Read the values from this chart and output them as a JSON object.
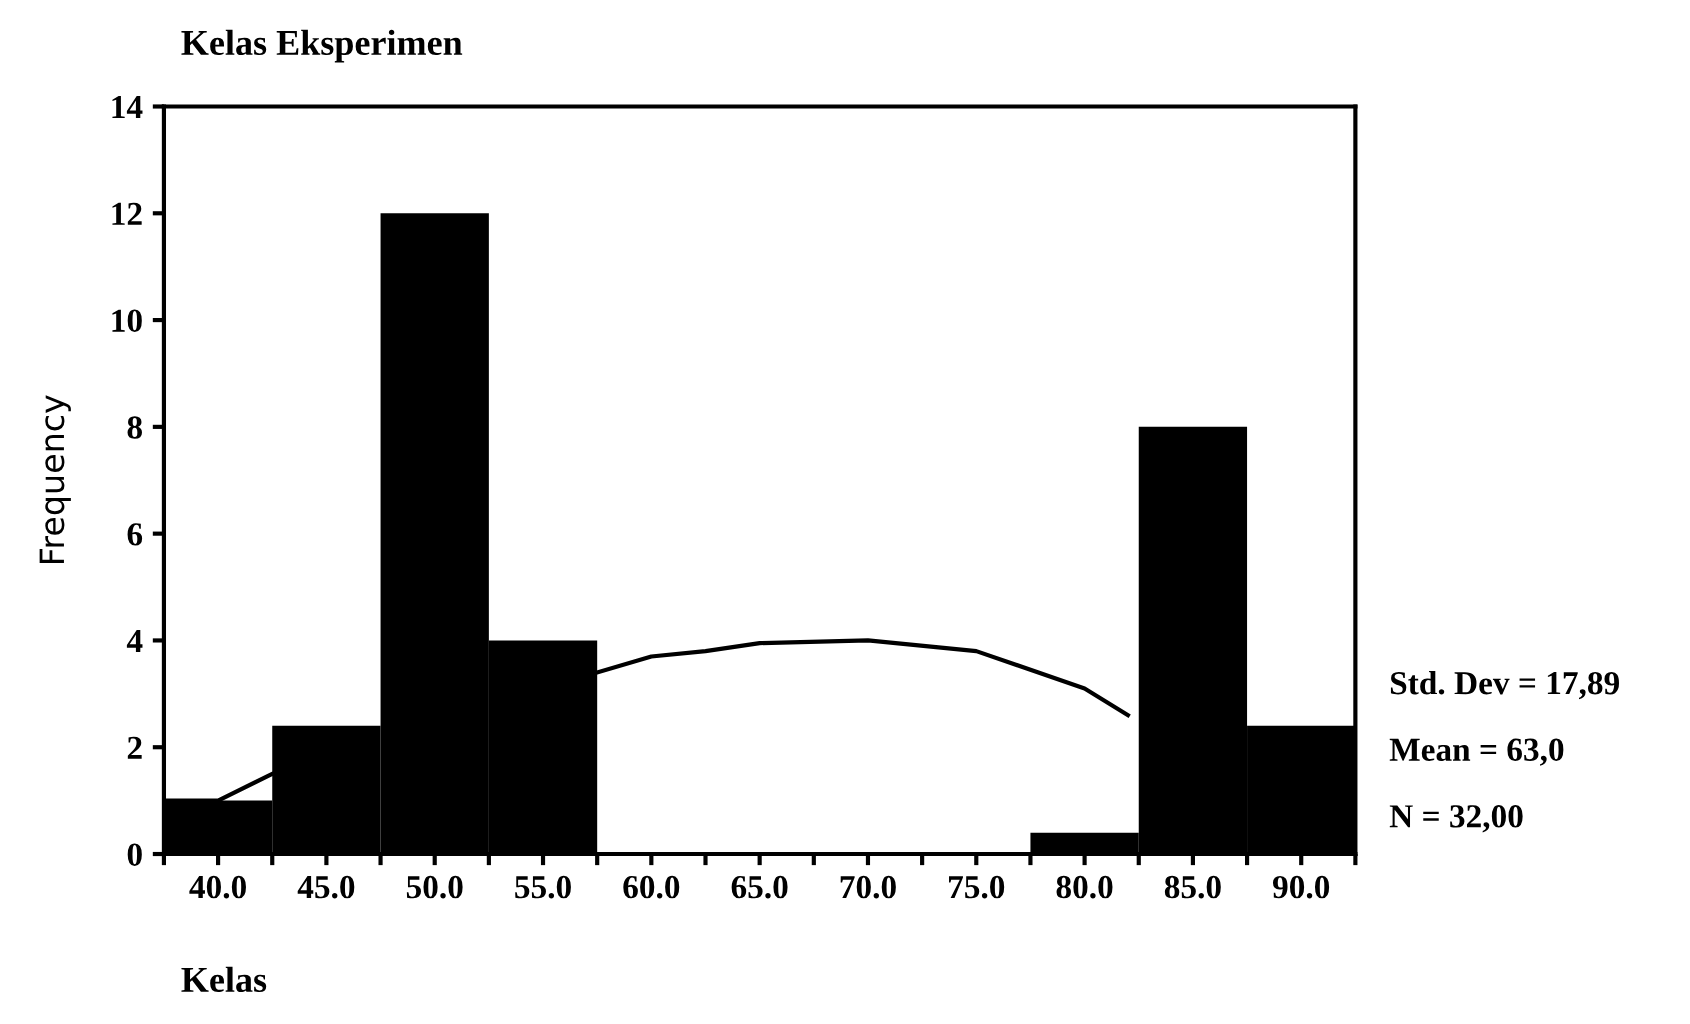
{
  "chart_data": {
    "type": "histogram",
    "title": "Kelas Eksperimen",
    "xlabel": "Kelas",
    "ylabel": "Frequency",
    "bins": [
      37.5,
      42.5,
      47.5,
      52.5,
      57.5,
      62.5,
      67.5,
      72.5,
      77.5,
      82.5,
      87.5,
      92.5
    ],
    "values": [
      1,
      2.4,
      12,
      4,
      0,
      0,
      0,
      0,
      0.4,
      8,
      2.4
    ],
    "color": "#000000",
    "series": [
      {
        "type": "line",
        "color": "#000000",
        "x": [
          37.5,
          40,
          42.5,
          50,
          57.5,
          60,
          62.5,
          65,
          70,
          75,
          80,
          82
        ],
        "values": [
          1.0,
          1.0,
          1.5,
          null,
          3.4,
          3.7,
          3.8,
          3.95,
          4.0,
          3.8,
          3.1,
          2.6
        ]
      }
    ],
    "xlim": [
      37.5,
      92.5
    ],
    "xticks": [
      {
        "value": 37.5,
        "label": null
      },
      {
        "value": 40,
        "label": "40.0"
      },
      {
        "value": 42.5,
        "label": null
      },
      {
        "value": 45,
        "label": "45.0"
      },
      {
        "value": 47.5,
        "label": null
      },
      {
        "value": 50,
        "label": "50.0"
      },
      {
        "value": 52.5,
        "label": null
      },
      {
        "value": 55,
        "label": "55.0"
      },
      {
        "value": 57.5,
        "label": null
      },
      {
        "value": 60,
        "label": "60.0"
      },
      {
        "value": 62.5,
        "label": null
      },
      {
        "value": 65,
        "label": "65.0"
      },
      {
        "value": 67.5,
        "label": null
      },
      {
        "value": 70,
        "label": "70.0"
      },
      {
        "value": 72.5,
        "label": null
      },
      {
        "value": 75,
        "label": "75.0"
      },
      {
        "value": 77.5,
        "label": null
      },
      {
        "value": 80,
        "label": "80.0"
      },
      {
        "value": 82.5,
        "label": null
      },
      {
        "value": 85,
        "label": "85.0"
      },
      {
        "value": 87.5,
        "label": null
      },
      {
        "value": 90,
        "label": "90.0"
      },
      {
        "value": 92.5,
        "label": null
      }
    ],
    "ylim": [
      0,
      14
    ],
    "yticks": [
      0,
      2,
      4,
      6,
      8,
      10,
      12,
      14
    ],
    "annotations": [
      "Std. Dev = 17,89",
      "Mean = 63,0",
      "N = 32,00"
    ],
    "grid": false,
    "legend": false
  }
}
